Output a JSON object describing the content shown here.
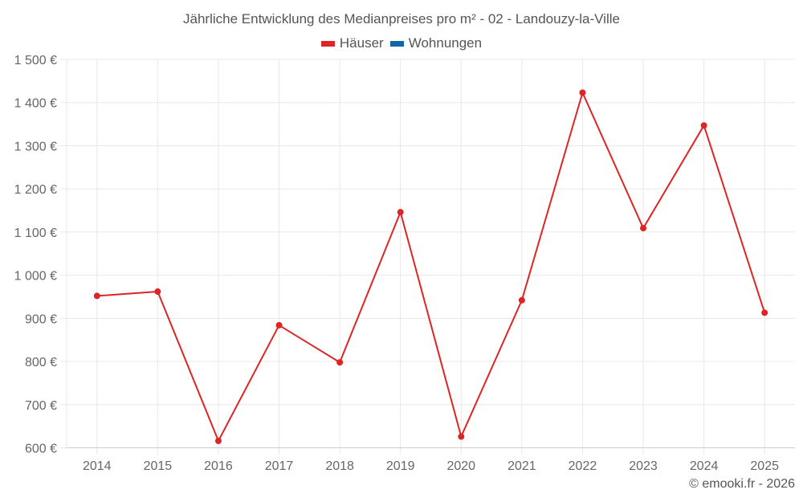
{
  "title": "Jährliche Entwicklung des Medianpreises pro m² - 02 - Landouzy-la-Ville",
  "legend": [
    {
      "label": "Häuser",
      "color": "#dd2526"
    },
    {
      "label": "Wohnungen",
      "color": "#0e68a8"
    }
  ],
  "credit": "© emooki.fr - 2026",
  "colors": {
    "grid": "#e8e8e8",
    "axis": "#cccccc",
    "series_houses": "#dd2526",
    "series_apartments": "#0e68a8"
  },
  "chart_data": {
    "type": "line",
    "title": "Jährliche Entwicklung des Medianpreises pro m² - 02 - Landouzy-la-Ville",
    "xlabel": "",
    "ylabel": "",
    "categories": [
      "2014",
      "2015",
      "2016",
      "2017",
      "2018",
      "2019",
      "2020",
      "2021",
      "2022",
      "2023",
      "2024",
      "2025"
    ],
    "series": [
      {
        "name": "Häuser",
        "color": "#dd2526",
        "values": [
          952,
          962,
          616,
          884,
          798,
          1146,
          626,
          942,
          1423,
          1109,
          1347,
          913
        ]
      },
      {
        "name": "Wohnungen",
        "color": "#0e68a8",
        "values": []
      }
    ],
    "y_ticks": [
      600,
      700,
      800,
      900,
      1000,
      1100,
      1200,
      1300,
      1400,
      1500
    ],
    "y_tick_labels": [
      "600 €",
      "700 €",
      "800 €",
      "900 €",
      "1 000 €",
      "1 100 €",
      "1 200 €",
      "1 300 €",
      "1 400 €",
      "1 500 €"
    ],
    "ylim": [
      600,
      1500
    ],
    "grid": true,
    "legend_position": "top"
  }
}
